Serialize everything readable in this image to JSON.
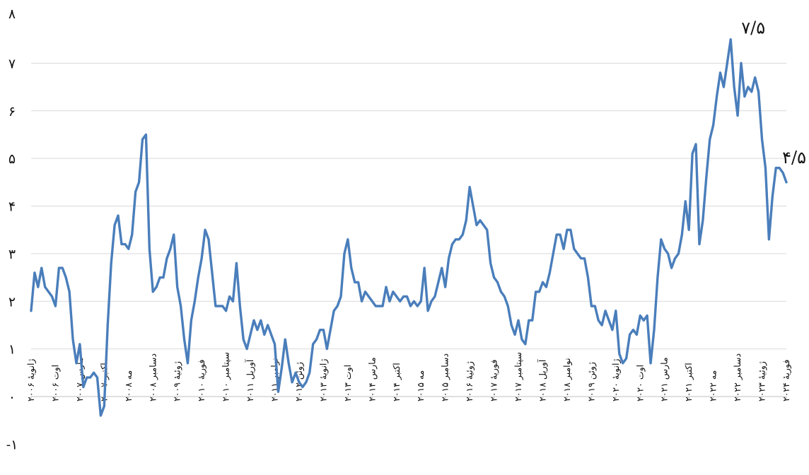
{
  "chart_data": {
    "type": "line",
    "title": "",
    "xlabel": "",
    "ylabel": "",
    "ylim": [
      -1,
      8
    ],
    "grid": true,
    "legend": "none",
    "y_ticks": [
      "-۱",
      "۰",
      "۱",
      "۲",
      "۳",
      "۴",
      "۵",
      "۶",
      "۷",
      "۸"
    ],
    "x_tick_labels": [
      "ژانویهٔ ۲۰۰۶",
      "اوت ۲۰۰۶",
      "مارس ۲۰۰۷",
      "اکتبر ۲۰۰۷",
      "مه ۲۰۰۸",
      "دسامبر ۲۰۰۸",
      "ژوئیهٔ ۲۰۰۹",
      "فوریهٔ ۲۰۱۰",
      "سپتامبر ۲۰۱۰",
      "آوریل ۲۰۱۱",
      "نوامبر ۲۰۱۱",
      "ژوئن ۲۰۱۲",
      "ژانویهٔ ۲۰۱۳",
      "اوت ۲۰۱۳",
      "مارس ۲۰۱۴",
      "اکتبر ۲۰۱۴",
      "مه ۲۰۱۵",
      "دسامبر ۲۰۱۵",
      "ژوئیهٔ ۲۰۱۶",
      "فوریهٔ ۲۰۱۷",
      "سپتامبر ۲۰۱۷",
      "آوریل ۲۰۱۸",
      "نوامبر ۲۰۱۸",
      "ژوئن ۲۰۱۹",
      "ژانویهٔ ۲۰۲۰",
      "اوت ۲۰۲۰",
      "مارس ۲۰۲۱",
      "اکتبر ۲۰۲۱",
      "مه ۲۰۲۲",
      "دسامبر ۲۰۲۲",
      "ژوئیهٔ ۲۰۲۳",
      "فوریهٔ ۲۰۲۴"
    ],
    "series": [
      {
        "color": "#4a7ebb",
        "points": [
          [
            0,
            1.8
          ],
          [
            1,
            2.6
          ],
          [
            2,
            2.3
          ],
          [
            3,
            2.7
          ],
          [
            4,
            2.3
          ],
          [
            5,
            2.2
          ],
          [
            6,
            2.1
          ],
          [
            7,
            1.9
          ],
          [
            8,
            2.7
          ],
          [
            9,
            2.7
          ],
          [
            10,
            2.5
          ],
          [
            11,
            2.2
          ],
          [
            12,
            1.2
          ],
          [
            13,
            0.7
          ],
          [
            14,
            1.1
          ],
          [
            15,
            0.2
          ],
          [
            16,
            0.4
          ],
          [
            17,
            0.4
          ],
          [
            18,
            0.5
          ],
          [
            19,
            0.4
          ],
          [
            20,
            -0.4
          ],
          [
            21,
            -0.2
          ],
          [
            22,
            1.5
          ],
          [
            23,
            2.8
          ],
          [
            24,
            3.6
          ],
          [
            25,
            3.8
          ],
          [
            26,
            3.2
          ],
          [
            27,
            3.2
          ],
          [
            28,
            3.1
          ],
          [
            29,
            3.4
          ],
          [
            30,
            4.3
          ],
          [
            31,
            4.5
          ],
          [
            32,
            5.4
          ],
          [
            33,
            5.5
          ],
          [
            34,
            3.1
          ],
          [
            35,
            2.2
          ],
          [
            36,
            2.3
          ],
          [
            37,
            2.5
          ],
          [
            38,
            2.5
          ],
          [
            39,
            2.9
          ],
          [
            40,
            3.1
          ],
          [
            41,
            3.4
          ],
          [
            42,
            2.3
          ],
          [
            43,
            1.9
          ],
          [
            44,
            1.2
          ],
          [
            45,
            0.7
          ],
          [
            46,
            1.6
          ],
          [
            47,
            2.0
          ],
          [
            48,
            2.5
          ],
          [
            49,
            2.9
          ],
          [
            50,
            3.5
          ],
          [
            51,
            3.3
          ],
          [
            52,
            2.6
          ],
          [
            53,
            1.9
          ],
          [
            54,
            1.9
          ],
          [
            55,
            1.9
          ],
          [
            56,
            1.8
          ],
          [
            57,
            2.1
          ],
          [
            58,
            2.0
          ],
          [
            59,
            2.8
          ],
          [
            60,
            1.9
          ],
          [
            61,
            1.2
          ],
          [
            62,
            1.0
          ],
          [
            63,
            1.3
          ],
          [
            64,
            1.6
          ],
          [
            65,
            1.4
          ],
          [
            66,
            1.6
          ],
          [
            67,
            1.3
          ],
          [
            68,
            1.5
          ],
          [
            69,
            1.3
          ],
          [
            70,
            1.1
          ],
          [
            71,
            0.1
          ],
          [
            72,
            0.6
          ],
          [
            73,
            1.2
          ],
          [
            74,
            0.7
          ],
          [
            75,
            0.3
          ],
          [
            76,
            0.5
          ],
          [
            77,
            0.3
          ],
          [
            78,
            0.2
          ],
          [
            79,
            0.3
          ],
          [
            80,
            0.5
          ],
          [
            81,
            1.1
          ],
          [
            82,
            1.2
          ],
          [
            83,
            1.4
          ],
          [
            84,
            1.4
          ],
          [
            85,
            1.0
          ],
          [
            86,
            1.4
          ],
          [
            87,
            1.8
          ],
          [
            88,
            1.9
          ],
          [
            89,
            2.1
          ],
          [
            90,
            3.0
          ],
          [
            91,
            3.3
          ],
          [
            92,
            2.7
          ],
          [
            93,
            2.4
          ],
          [
            94,
            2.4
          ],
          [
            95,
            2.0
          ],
          [
            96,
            2.2
          ],
          [
            97,
            2.1
          ],
          [
            98,
            2.0
          ],
          [
            99,
            1.9
          ],
          [
            100,
            1.9
          ],
          [
            101,
            1.9
          ],
          [
            102,
            2.3
          ],
          [
            103,
            2.0
          ],
          [
            104,
            2.2
          ],
          [
            105,
            2.1
          ],
          [
            106,
            2.0
          ],
          [
            107,
            2.1
          ],
          [
            108,
            2.1
          ],
          [
            109,
            1.9
          ],
          [
            110,
            2.0
          ],
          [
            111,
            1.9
          ],
          [
            112,
            2.0
          ],
          [
            113,
            2.7
          ],
          [
            114,
            1.8
          ],
          [
            115,
            2.0
          ],
          [
            116,
            2.1
          ],
          [
            117,
            2.4
          ],
          [
            118,
            2.7
          ],
          [
            119,
            2.3
          ],
          [
            120,
            2.9
          ],
          [
            121,
            3.2
          ],
          [
            122,
            3.3
          ],
          [
            123,
            3.3
          ],
          [
            124,
            3.4
          ],
          [
            125,
            3.7
          ],
          [
            126,
            4.4
          ],
          [
            127,
            4.0
          ],
          [
            128,
            3.6
          ],
          [
            129,
            3.7
          ],
          [
            130,
            3.6
          ],
          [
            131,
            3.5
          ],
          [
            132,
            2.8
          ],
          [
            133,
            2.5
          ],
          [
            134,
            2.4
          ],
          [
            135,
            2.2
          ],
          [
            136,
            2.1
          ],
          [
            137,
            1.9
          ],
          [
            138,
            1.5
          ],
          [
            139,
            1.3
          ],
          [
            140,
            1.6
          ],
          [
            141,
            1.2
          ],
          [
            142,
            1.1
          ],
          [
            143,
            1.6
          ],
          [
            144,
            1.6
          ],
          [
            145,
            2.2
          ],
          [
            146,
            2.2
          ],
          [
            147,
            2.4
          ],
          [
            148,
            2.3
          ],
          [
            149,
            2.6
          ],
          [
            150,
            3.0
          ],
          [
            151,
            3.4
          ],
          [
            152,
            3.4
          ],
          [
            153,
            3.1
          ],
          [
            154,
            3.5
          ],
          [
            155,
            3.5
          ],
          [
            156,
            3.1
          ],
          [
            157,
            3.0
          ],
          [
            158,
            2.9
          ],
          [
            159,
            2.9
          ],
          [
            160,
            2.5
          ],
          [
            161,
            1.9
          ],
          [
            162,
            1.9
          ],
          [
            163,
            1.6
          ],
          [
            164,
            1.5
          ],
          [
            165,
            1.8
          ],
          [
            166,
            1.6
          ],
          [
            167,
            1.4
          ],
          [
            168,
            1.8
          ],
          [
            169,
            0.9
          ],
          [
            170,
            0.7
          ],
          [
            171,
            0.8
          ],
          [
            172,
            1.3
          ],
          [
            173,
            1.4
          ],
          [
            174,
            1.3
          ],
          [
            175,
            1.7
          ],
          [
            176,
            1.6
          ],
          [
            177,
            1.7
          ],
          [
            178,
            0.7
          ],
          [
            179,
            1.4
          ],
          [
            180,
            2.5
          ],
          [
            181,
            3.3
          ],
          [
            182,
            3.1
          ],
          [
            183,
            3.0
          ],
          [
            184,
            2.7
          ],
          [
            185,
            2.9
          ],
          [
            186,
            3.0
          ],
          [
            187,
            3.4
          ],
          [
            188,
            4.1
          ],
          [
            189,
            3.5
          ],
          [
            190,
            5.1
          ],
          [
            191,
            5.3
          ],
          [
            192,
            3.2
          ],
          [
            193,
            3.7
          ],
          [
            194,
            4.6
          ],
          [
            195,
            5.4
          ],
          [
            196,
            5.7
          ],
          [
            197,
            6.3
          ],
          [
            198,
            6.8
          ],
          [
            199,
            6.5
          ],
          [
            200,
            7.0
          ],
          [
            201,
            7.5
          ],
          [
            202,
            6.5
          ],
          [
            203,
            5.9
          ],
          [
            204,
            7.0
          ],
          [
            205,
            6.3
          ],
          [
            206,
            6.5
          ],
          [
            207,
            6.4
          ],
          [
            208,
            6.7
          ],
          [
            209,
            6.4
          ],
          [
            210,
            5.4
          ],
          [
            211,
            4.8
          ],
          [
            212,
            3.3
          ],
          [
            213,
            4.2
          ],
          [
            214,
            4.8
          ],
          [
            215,
            4.8
          ],
          [
            216,
            4.7
          ],
          [
            217,
            4.5
          ]
        ]
      }
    ],
    "annotations": [
      {
        "index": 201,
        "label": "۷/۵"
      },
      {
        "index": 217,
        "label": "۴/۵"
      }
    ]
  }
}
